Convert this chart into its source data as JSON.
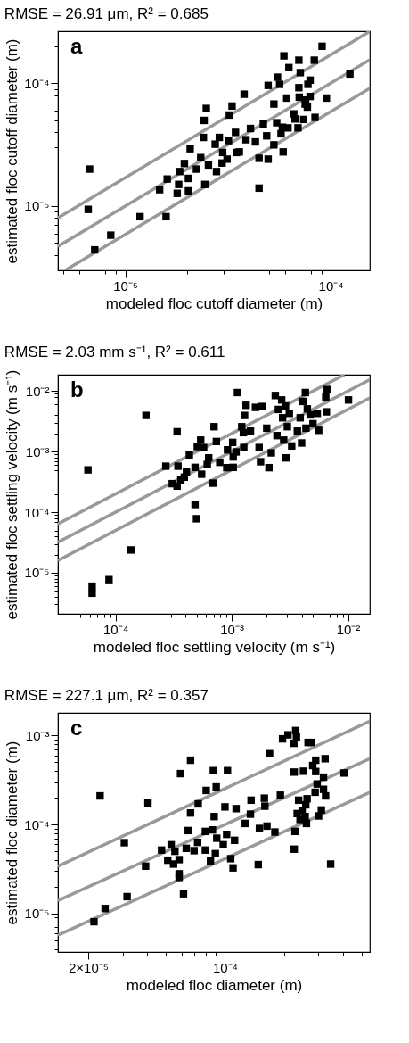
{
  "chart_data": [
    {
      "type": "scatter",
      "title": "RMSE = 26.91 μm, R² = 0.685",
      "xlabel": "modeled floc cutoff diameter (m)",
      "ylabel": "estimated floc cutoff diameter (m)",
      "annotations": [
        "a"
      ],
      "log": "xy",
      "xlim": [
        4.7e-06,
        0.000155
      ],
      "ylim": [
        3e-06,
        0.000265
      ],
      "xticks": [
        {
          "value": 5e-06,
          "label": null
        },
        {
          "value": 6e-06,
          "label": null
        },
        {
          "value": 7e-06,
          "label": null
        },
        {
          "value": 8e-06,
          "label": null
        },
        {
          "value": 9e-06,
          "label": null
        },
        {
          "value": 1e-05,
          "label": "10⁻⁵"
        },
        {
          "value": 2e-05,
          "label": null
        },
        {
          "value": 3e-05,
          "label": null
        },
        {
          "value": 4e-05,
          "label": null
        },
        {
          "value": 5e-05,
          "label": null
        },
        {
          "value": 6e-05,
          "label": null
        },
        {
          "value": 7e-05,
          "label": null
        },
        {
          "value": 8e-05,
          "label": null
        },
        {
          "value": 9e-05,
          "label": null
        },
        {
          "value": 0.0001,
          "label": "10⁻⁴"
        }
      ],
      "yticks": [
        {
          "value": 4e-06,
          "label": null
        },
        {
          "value": 5e-06,
          "label": null
        },
        {
          "value": 6e-06,
          "label": null
        },
        {
          "value": 7e-06,
          "label": null
        },
        {
          "value": 8e-06,
          "label": null
        },
        {
          "value": 9e-06,
          "label": null
        },
        {
          "value": 1e-05,
          "label": "10⁻⁵"
        },
        {
          "value": 2e-05,
          "label": null
        },
        {
          "value": 3e-05,
          "label": null
        },
        {
          "value": 4e-05,
          "label": null
        },
        {
          "value": 5e-05,
          "label": null
        },
        {
          "value": 6e-05,
          "label": null
        },
        {
          "value": 7e-05,
          "label": null
        },
        {
          "value": 8e-05,
          "label": null
        },
        {
          "value": 9e-05,
          "label": null
        },
        {
          "value": 0.0001,
          "label": "10⁻⁴"
        },
        {
          "value": 0.0002,
          "label": null
        }
      ],
      "series": [
        {
          "type": "line",
          "color": "#999999",
          "x": [
            4.7e-06,
            0.000155
          ],
          "values": [
            8e-06,
            0.000264
          ]
        },
        {
          "type": "line",
          "color": "#999999",
          "x": [
            4.7e-06,
            0.000155
          ],
          "values": [
            4.7e-06,
            0.000155
          ]
        },
        {
          "type": "line",
          "color": "#999999",
          "x": [
            5.1e-06,
            0.000155
          ],
          "values": [
            3e-06,
            9.1e-05
          ]
        },
        {
          "type": "scatter",
          "marker": "square",
          "color": "#000000",
          "x": [
            6.7e-06,
            6.6e-06,
            7.1e-06,
            8.5e-06,
            1.18e-05,
            1.58e-05,
            1.47e-05,
            1.6e-05,
            1.79e-05,
            1.82e-05,
            2.03e-05,
            1.84e-05,
            1.94e-05,
            2.03e-05,
            2.07e-05,
            2.22e-05,
            2.33e-05,
            2.44e-05,
            2.4e-05,
            2.42e-05,
            2.48e-05,
            2.54e-05,
            2.78e-05,
            2.74e-05,
            2.87e-05,
            2.98e-05,
            2.96e-05,
            3.13e-05,
            3.18e-05,
            3.21e-05,
            3.31e-05,
            3.48e-05,
            3.44e-05,
            3.59e-05,
            3.79e-05,
            3.87e-05,
            4.07e-05,
            4.3e-05,
            4.48e-05,
            4.48e-05,
            4.7e-05,
            4.88e-05,
            4.96e-05,
            4.96e-05,
            5.29e-05,
            5.29e-05,
            5.51e-05,
            5.64e-05,
            5.46e-05,
            5.82e-05,
            5.73e-05,
            5.87e-05,
            5.92e-05,
            6.26e-05,
            6.11e-05,
            6.2e-05,
            6.61e-05,
            6.71e-05,
            6.93e-05,
            7e-05,
            7.11e-05,
            7e-05,
            7.03e-05,
            7.51e-05,
            7.39e-05,
            7.75e-05,
            7.94e-05,
            7.94e-05,
            7.7e-05,
            8.32e-05,
            8.39e-05,
            9.08e-05,
            9.53e-05,
            0.000124,
            7.55e-05
          ],
          "values": [
            2e-05,
            9.4e-06,
            4.4e-06,
            5.8e-06,
            8.2e-06,
            8.2e-06,
            1.36e-05,
            1.66e-05,
            1.27e-05,
            1.5e-05,
            1.33e-05,
            1.91e-05,
            2.22e-05,
            1.68e-05,
            2.93e-05,
            2e-05,
            2.48e-05,
            1.5e-05,
            3.62e-05,
            4.98e-05,
            6.23e-05,
            2.16e-05,
            1.91e-05,
            3.19e-05,
            3.62e-05,
            2.73e-05,
            2.24e-05,
            2.41e-05,
            3.41e-05,
            5.51e-05,
            6.52e-05,
            2.73e-05,
            3.98e-05,
            2.76e-05,
            8.14e-05,
            3.47e-05,
            4.28e-05,
            3.33e-05,
            2.45e-05,
            1.4e-05,
            4.66e-05,
            3.73e-05,
            2.41e-05,
            9.6e-05,
            3.15e-05,
            6.77e-05,
            0.000112,
            9.8e-05,
            4.77e-05,
            4.38e-05,
            3.88e-05,
            2.76e-05,
            0.000167,
            0.000134,
            7.57e-05,
            4.33e-05,
            5.63e-05,
            5.12e-05,
            4.33e-05,
            0.000154,
            0.000122,
            9.2e-05,
            7.7e-05,
            6.77e-05,
            5.07e-05,
            9.8e-05,
            0.000106,
            7.8e-05,
            6.4e-05,
            0.000154,
            5.27e-05,
            0.0002,
            7.57e-05,
            0.000119,
            7.3e-05
          ]
        }
      ]
    },
    {
      "type": "scatter",
      "title": "RMSE = 2.03 mm s⁻¹, R² = 0.611",
      "xlabel": "modeled floc settling velocity (m s⁻¹)",
      "ylabel": "estimated floc settling velocity (m s⁻¹)",
      "annotations": [
        "b"
      ],
      "log": "xy",
      "xlim": [
        3.2e-05,
        0.0154
      ],
      "ylim": [
        2.1e-06,
        0.0186
      ],
      "xticks": [
        {
          "value": 4e-05,
          "label": null
        },
        {
          "value": 5e-05,
          "label": null
        },
        {
          "value": 6e-05,
          "label": null
        },
        {
          "value": 7e-05,
          "label": null
        },
        {
          "value": 8e-05,
          "label": null
        },
        {
          "value": 9e-05,
          "label": null
        },
        {
          "value": 0.0001,
          "label": "10⁻⁴"
        },
        {
          "value": 0.0002,
          "label": null
        },
        {
          "value": 0.0003,
          "label": null
        },
        {
          "value": 0.0004,
          "label": null
        },
        {
          "value": 0.0005,
          "label": null
        },
        {
          "value": 0.0006,
          "label": null
        },
        {
          "value": 0.0007,
          "label": null
        },
        {
          "value": 0.0008,
          "label": null
        },
        {
          "value": 0.0009,
          "label": null
        },
        {
          "value": 0.001,
          "label": "10⁻³"
        },
        {
          "value": 0.002,
          "label": null
        },
        {
          "value": 0.003,
          "label": null
        },
        {
          "value": 0.004,
          "label": null
        },
        {
          "value": 0.005,
          "label": null
        },
        {
          "value": 0.006,
          "label": null
        },
        {
          "value": 0.007,
          "label": null
        },
        {
          "value": 0.008,
          "label": null
        },
        {
          "value": 0.009,
          "label": null
        },
        {
          "value": 0.01,
          "label": "10⁻²"
        }
      ],
      "yticks": [
        {
          "value": 3e-06,
          "label": null
        },
        {
          "value": 4e-06,
          "label": null
        },
        {
          "value": 5e-06,
          "label": null
        },
        {
          "value": 6e-06,
          "label": null
        },
        {
          "value": 7e-06,
          "label": null
        },
        {
          "value": 8e-06,
          "label": null
        },
        {
          "value": 9e-06,
          "label": null
        },
        {
          "value": 1e-05,
          "label": "10⁻⁵"
        },
        {
          "value": 2e-05,
          "label": null
        },
        {
          "value": 3e-05,
          "label": null
        },
        {
          "value": 4e-05,
          "label": null
        },
        {
          "value": 5e-05,
          "label": null
        },
        {
          "value": 6e-05,
          "label": null
        },
        {
          "value": 7e-05,
          "label": null
        },
        {
          "value": 8e-05,
          "label": null
        },
        {
          "value": 9e-05,
          "label": null
        },
        {
          "value": 0.0001,
          "label": "10⁻⁴"
        },
        {
          "value": 0.0002,
          "label": null
        },
        {
          "value": 0.0003,
          "label": null
        },
        {
          "value": 0.0004,
          "label": null
        },
        {
          "value": 0.0005,
          "label": null
        },
        {
          "value": 0.0006,
          "label": null
        },
        {
          "value": 0.0007,
          "label": null
        },
        {
          "value": 0.0008,
          "label": null
        },
        {
          "value": 0.0009,
          "label": null
        },
        {
          "value": 0.001,
          "label": "10⁻³"
        },
        {
          "value": 0.002,
          "label": null
        },
        {
          "value": 0.003,
          "label": null
        },
        {
          "value": 0.004,
          "label": null
        },
        {
          "value": 0.005,
          "label": null
        },
        {
          "value": 0.006,
          "label": null
        },
        {
          "value": 0.007,
          "label": null
        },
        {
          "value": 0.008,
          "label": null
        },
        {
          "value": 0.009,
          "label": null
        },
        {
          "value": 0.01,
          "label": "10⁻²"
        }
      ],
      "series": [
        {
          "type": "line",
          "color": "#999999",
          "x": [
            3.2e-05,
            0.0093
          ],
          "values": [
            6.4e-05,
            0.0186
          ]
        },
        {
          "type": "line",
          "color": "#999999",
          "x": [
            3.2e-05,
            0.0154
          ],
          "values": [
            3.2e-05,
            0.0154
          ]
        },
        {
          "type": "line",
          "color": "#999999",
          "x": [
            3.2e-05,
            0.0154
          ],
          "values": [
            1.6e-05,
            0.0077
          ]
        },
        {
          "type": "scatter",
          "marker": "square",
          "color": "#000000",
          "x": [
            5.8e-05,
            6.3e-05,
            6.3e-05,
            8.8e-05,
            0.000136,
            0.000183,
            0.000339,
            0.000271,
            0.000345,
            0.000308,
            0.000339,
            0.000365,
            0.000391,
            0.000408,
            0.000432,
            0.000484,
            0.000484,
            0.000498,
            0.000506,
            0.000541,
            0.000551,
            0.000573,
            0.000616,
            0.000634,
            0.00069,
            0.000705,
            0.000738,
            0.000789,
            0.000907,
            0.00103,
            0.00102,
            0.00103,
            0.00109,
            0.00112,
            0.00122,
            0.00126,
            0.00127,
            0.00129,
            0.00133,
            0.00145,
            0.0016,
            0.00172,
            0.00177,
            0.00182,
            0.002,
            0.00209,
            0.00219,
            0.00237,
            0.00245,
            0.00252,
            0.00269,
            0.00274,
            0.0028,
            0.0029,
            0.00293,
            0.00301,
            0.00313,
            0.00328,
            0.00367,
            0.00388,
            0.00399,
            0.00411,
            0.0043,
            0.00435,
            0.00447,
            0.00473,
            0.005,
            0.00544,
            0.0056,
            0.00644,
            0.00663,
            0.00652,
            0.0101,
            0.00092
          ],
          "values": [
            0.0005,
            6e-06,
            4.6e-06,
            7.7e-06,
            2.38e-05,
            0.00396,
            0.00213,
            0.000575,
            0.000575,
            0.000296,
            0.00027,
            0.000338,
            0.000379,
            0.000459,
            0.000883,
            0.00055,
            0.000134,
            7.8e-05,
            0.00121,
            0.00155,
            0.000424,
            0.00117,
            0.000615,
            0.000789,
            0.000302,
            0.00258,
            0.00147,
            0.000666,
            0.000544,
            0.00055,
            0.00142,
            0.000817,
            0.00099,
            0.00945,
            0.00258,
            0.00206,
            0.00117,
            0.00396,
            0.00582,
            0.00218,
            0.00538,
            0.00117,
            0.000681,
            0.00556,
            0.00244,
            0.000544,
            0.000955,
            0.00844,
            0.00184,
            0.00497,
            0.00713,
            0.00362,
            0.00155,
            0.00569,
            0.000789,
            0.00258,
            0.00429,
            0.00124,
            0.00218,
            0.00362,
            0.00139,
            0.00674,
            0.00945,
            0.00244,
            0.00508,
            0.00405,
            0.00289,
            0.00429,
            0.00225,
            0.00798,
            0.0106,
            0.00454,
            0.00713,
            0.00107
          ]
        }
      ]
    },
    {
      "type": "scatter",
      "title": "RMSE = 227.1 μm, R² = 0.357",
      "xlabel": "modeled floc diameter (m)",
      "ylabel": "estimated floc diameter (m)",
      "annotations": [
        "c"
      ],
      "log": "xy",
      "xlim": [
        1.4e-05,
        0.00055
      ],
      "ylim": [
        3.7e-06,
        0.0018
      ],
      "xticks": [
        {
          "value": 2e-05,
          "label": "2×10⁻⁵"
        },
        {
          "value": 3e-05,
          "label": null
        },
        {
          "value": 4e-05,
          "label": null
        },
        {
          "value": 5e-05,
          "label": null
        },
        {
          "value": 6e-05,
          "label": null
        },
        {
          "value": 7e-05,
          "label": null
        },
        {
          "value": 8e-05,
          "label": null
        },
        {
          "value": 9e-05,
          "label": null
        },
        {
          "value": 0.0001,
          "label": "10⁻⁴"
        },
        {
          "value": 0.0002,
          "label": null
        },
        {
          "value": 0.0003,
          "label": null
        },
        {
          "value": 0.0004,
          "label": null
        },
        {
          "value": 0.0005,
          "label": null
        }
      ],
      "yticks": [
        {
          "value": 4e-06,
          "label": null
        },
        {
          "value": 5e-06,
          "label": null
        },
        {
          "value": 6e-06,
          "label": null
        },
        {
          "value": 7e-06,
          "label": null
        },
        {
          "value": 8e-06,
          "label": null
        },
        {
          "value": 9e-06,
          "label": null
        },
        {
          "value": 1e-05,
          "label": "10⁻⁵"
        },
        {
          "value": 2e-05,
          "label": null
        },
        {
          "value": 3e-05,
          "label": null
        },
        {
          "value": 4e-05,
          "label": null
        },
        {
          "value": 5e-05,
          "label": null
        },
        {
          "value": 6e-05,
          "label": null
        },
        {
          "value": 7e-05,
          "label": null
        },
        {
          "value": 8e-05,
          "label": null
        },
        {
          "value": 9e-05,
          "label": null
        },
        {
          "value": 0.0001,
          "label": "10⁻⁴"
        },
        {
          "value": 0.0002,
          "label": null
        },
        {
          "value": 0.0003,
          "label": null
        },
        {
          "value": 0.0004,
          "label": null
        },
        {
          "value": 0.0005,
          "label": null
        },
        {
          "value": 0.0006,
          "label": null
        },
        {
          "value": 0.0007,
          "label": null
        },
        {
          "value": 0.0008,
          "label": null
        },
        {
          "value": 0.0009,
          "label": null
        },
        {
          "value": 0.001,
          "label": "10⁻³"
        }
      ],
      "series": [
        {
          "type": "line",
          "color": "#999999",
          "x": [
            1.4e-05,
            0.00055
          ],
          "values": [
            3.4e-05,
            0.00145
          ]
        },
        {
          "type": "line",
          "color": "#999999",
          "x": [
            1.4e-05,
            0.00055
          ],
          "values": [
            1.4e-05,
            0.00055
          ]
        },
        {
          "type": "line",
          "color": "#999999",
          "x": [
            1.4e-05,
            0.00055
          ],
          "values": [
            5.7e-06,
            0.00023
          ]
        },
        {
          "type": "scatter",
          "marker": "square",
          "color": "#000000",
          "x": [
            2.14e-05,
            2.44e-05,
            2.3e-05,
            3.06e-05,
            3.16e-05,
            3.93e-05,
            4.04e-05,
            4.74e-05,
            5.1e-05,
            5.31e-05,
            5.46e-05,
            5.55e-05,
            5.83e-05,
            5.83e-05,
            5.83e-05,
            5.93e-05,
            6.14e-05,
            6.34e-05,
            6.49e-05,
            6.67e-05,
            6.67e-05,
            6.95e-05,
            7.25e-05,
            7.3e-05,
            7.94e-05,
            7.94e-05,
            8.02e-05,
            8.43e-05,
            8.63e-05,
            8.72e-05,
            8.81e-05,
            8.93e-05,
            9.02e-05,
            9.08e-05,
            9.8e-05,
            0.0001,
            0.000102,
            0.000103,
            0.000107,
            0.00011,
            0.000112,
            0.000114,
            0.000127,
            0.000135,
            0.000136,
            0.000148,
            0.00015,
            0.000159,
            0.00016,
            0.000164,
            0.000169,
            0.00018,
            0.000192,
            0.000197,
            0.00021,
            0.000225,
            0.000226,
            0.000228,
            0.000226,
            0.00023,
            0.000232,
            0.000234,
            0.000238,
            0.000242,
            0.000248,
            0.000252,
            0.000257,
            0.000261,
            0.000259,
            0.000263,
            0.000266,
            0.000275,
            0.000281,
            0.000291,
            0.000291,
            0.000289,
            0.000296,
            0.000301,
            0.000311,
            0.000319,
            0.000319,
            0.000325,
            0.000327,
            0.000347,
            0.000406
          ],
          "values": [
            8.1e-06,
            1.14e-05,
            0.00021,
            6.26e-05,
            1.55e-05,
            3.41e-05,
            0.000174,
            5.17e-05,
            3.98e-05,
            5.93e-05,
            3.6e-05,
            5.01e-05,
            4.04e-05,
            2.8e-05,
            2.55e-05,
            0.000374,
            1.67e-05,
            5.41e-05,
            8.57e-05,
            0.000135,
            0.000529,
            5.09e-05,
            6.31e-05,
            0.000171,
            8.38e-05,
            5.17e-05,
            0.000242,
            3.89e-05,
            8.71e-05,
            0.000404,
            0.000123,
            4.71e-05,
            0.000265,
            7.03e-05,
            5.93e-05,
            0.000158,
            7.76e-05,
            0.000404,
            4.14e-05,
            3.26e-05,
            6.66e-05,
            0.000151,
            0.000103,
            0.000131,
            0.000188,
            3.55e-05,
            9.05e-05,
            0.000198,
            0.000161,
            9.62e-05,
            0.000626,
            8.25e-05,
            0.000214,
            0.000919,
            0.00102,
            0.000819,
            0.000389,
            8.38e-05,
            5.29e-05,
            0.00114,
            0.000962,
            0.000133,
            0.000188,
            0.000114,
            0.000144,
            0.000398,
            0.000123,
            0.000103,
            0.000167,
            0.000195,
            0.000838,
            0.000838,
            0.000461,
            0.000529,
            0.000395,
            0.000231,
            0.000286,
            0.000125,
            0.000146,
            0.000341,
            0.000249,
            0.00055,
            0.00021,
            3.6e-05,
            0.00038
          ]
        }
      ]
    }
  ]
}
